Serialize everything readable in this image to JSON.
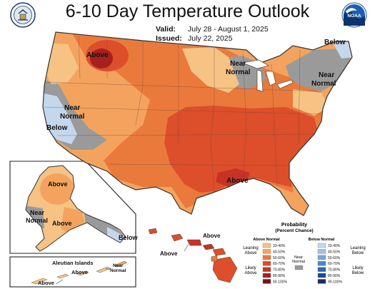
{
  "title": "6-10 Day Temperature Outlook",
  "valid_label": "Valid:",
  "valid_dates": "July 28 - August 1, 2025",
  "issued_label": "Issued:",
  "issued_date": "July 22, 2025",
  "logos": {
    "left": "doc-seal-icon",
    "right": "noaa-logo-icon",
    "noaa_text": "NOAA"
  },
  "map_labels": {
    "conus_above_nw": "Above",
    "conus_near_normal_north_1": "Near",
    "conus_near_normal_north_2": "Normal",
    "conus_below_ne": "Below",
    "conus_near_normal_ne_1": "Near",
    "conus_near_normal_ne_2": "Normal",
    "conus_near_normal_west_1": "Near",
    "conus_near_normal_west_2": "Normal",
    "conus_below_west": "Below",
    "conus_above_gulf": "Above",
    "ak_above_1": "Above",
    "ak_above_2": "Above",
    "ak_near_normal_1": "Near",
    "ak_near_normal_2": "Normal",
    "ak_below": "Below",
    "hi_above_1": "Above",
    "hi_above_2": "Above",
    "aleutian_title": "Aleutian Islands",
    "aleutian_above_1": "Above",
    "aleutian_above_2": "Above",
    "aleutian_near_normal_1": "Near",
    "aleutian_near_normal_2": "Normal"
  },
  "legend": {
    "title_1": "Probability",
    "title_2": "(Percent Chance)",
    "above_header": "Above Normal",
    "below_header": "Below Normal",
    "near_normal_1": "Near",
    "near_normal_2": "Normal",
    "leaning_above_1": "Leaning",
    "leaning_above_2": "Above",
    "likely_above_1": "Likely",
    "likely_above_2": "Above",
    "leaning_below_1": "Leaning",
    "leaning_below_2": "Below",
    "likely_below_1": "Likely",
    "likely_below_2": "Below",
    "ranges": [
      "33-40%",
      "40-50%",
      "50-60%",
      "60-70%",
      "70-80%",
      "80-90%",
      "90-100%"
    ],
    "above_colors": [
      "#f6c384",
      "#f4a35e",
      "#ea7a3b",
      "#dd4e2a",
      "#c83224",
      "#a7201d",
      "#7b1114"
    ],
    "below_colors": [
      "#c5d7ec",
      "#9fc0e2",
      "#7aa5d4",
      "#4f86c4",
      "#2f66ad",
      "#1f4a8f",
      "#1a2d6b"
    ],
    "near_color": "#9a9a9a"
  }
}
